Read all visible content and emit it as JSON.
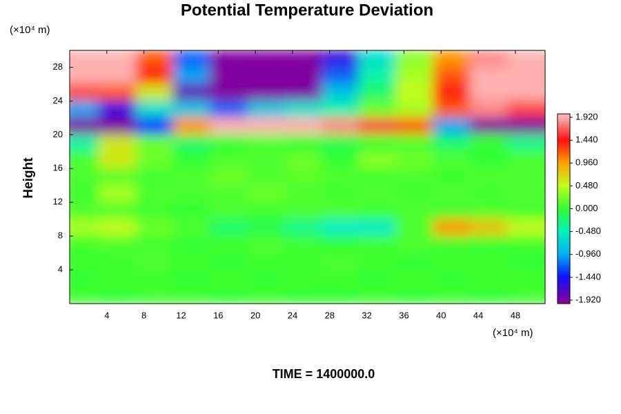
{
  "chart_data": {
    "type": "heatmap",
    "title": "Potential Temperature Deviation",
    "ylabel": "Height",
    "y_unit": "(×10⁴ m)",
    "x_unit": "(×10⁴ m)",
    "annotation": "TIME = 1400000.0",
    "x": [
      2,
      6,
      10,
      14,
      18,
      22,
      26,
      30,
      34,
      38,
      42,
      46,
      50
    ],
    "y": [
      29,
      27,
      25,
      23,
      21,
      19,
      17,
      15,
      13,
      11,
      9,
      7,
      5,
      3,
      1
    ],
    "z": [
      [
        1.92,
        1.92,
        1.2,
        -1.2,
        -1.92,
        -1.92,
        -1.92,
        -1.6,
        -0.6,
        0.3,
        1.0,
        1.8,
        1.92
      ],
      [
        1.92,
        1.92,
        1.4,
        -1.0,
        -1.92,
        -1.92,
        -1.92,
        -1.2,
        -0.4,
        0.4,
        1.2,
        1.92,
        1.92
      ],
      [
        1.6,
        1.2,
        0.6,
        -1.8,
        -1.92,
        -1.92,
        -1.9,
        -0.8,
        -0.2,
        0.5,
        1.4,
        1.92,
        1.92
      ],
      [
        -1.0,
        -1.6,
        -0.6,
        -0.8,
        -1.2,
        -0.8,
        -0.6,
        -0.4,
        0.2,
        0.4,
        1.2,
        1.8,
        1.6
      ],
      [
        -1.92,
        -1.92,
        -1.4,
        1.0,
        1.92,
        1.92,
        1.92,
        1.8,
        1.6,
        1.2,
        -1.0,
        -1.92,
        -1.92
      ],
      [
        -0.4,
        0.6,
        0.2,
        -0.2,
        0.0,
        0.1,
        0.0,
        -0.1,
        0.0,
        0.1,
        -0.2,
        0.0,
        -0.3
      ],
      [
        0.1,
        0.6,
        0.2,
        0.0,
        0.1,
        0.1,
        0.2,
        0.0,
        0.3,
        0.2,
        0.1,
        0.0,
        0.1
      ],
      [
        0.1,
        0.15,
        0.05,
        0.1,
        0.2,
        0.1,
        0.15,
        0.1,
        0.05,
        0.1,
        0.05,
        0.1,
        0.1
      ],
      [
        0.05,
        0.4,
        0.1,
        0.1,
        0.1,
        0.2,
        0.1,
        0.05,
        0.1,
        0.05,
        0.1,
        0.05,
        0.1
      ],
      [
        0.1,
        0.1,
        0.05,
        0.0,
        0.1,
        0.05,
        0.1,
        0.1,
        0.05,
        0.1,
        0.05,
        0.1,
        0.05
      ],
      [
        0.4,
        0.5,
        0.2,
        0.1,
        -0.2,
        -0.1,
        -0.3,
        -0.5,
        -0.5,
        0.1,
        1.0,
        0.8,
        0.5
      ],
      [
        0.05,
        0.1,
        0.05,
        0.0,
        0.05,
        0.1,
        0.05,
        0.0,
        0.05,
        0.1,
        0.05,
        0.0,
        0.05
      ],
      [
        0.05,
        0.05,
        0.1,
        0.05,
        0.0,
        0.05,
        0.05,
        0.1,
        0.05,
        0.0,
        0.05,
        0.05,
        0.0
      ],
      [
        0.0,
        0.05,
        0.05,
        0.0,
        0.05,
        0.0,
        0.05,
        0.05,
        0.0,
        0.05,
        0.0,
        0.05,
        0.05
      ],
      [
        0.05,
        0.0,
        0.05,
        0.05,
        0.0,
        0.05,
        0.0,
        0.0,
        0.05,
        0.0,
        0.05,
        0.0,
        0.05
      ]
    ],
    "xlim": [
      0,
      51.2
    ],
    "ylim": [
      0,
      30
    ],
    "xticks": [
      4,
      8,
      12,
      16,
      20,
      24,
      28,
      32,
      36,
      40,
      44,
      48
    ],
    "yticks": [
      4,
      8,
      12,
      16,
      20,
      24,
      28
    ],
    "clim": [
      -1.92,
      1.92
    ],
    "colors": [
      "#8000a0",
      "#1010ff",
      "#00b0f0",
      "#00f0c0",
      "#30ff30",
      "#c0ff20",
      "#ffa000",
      "#ff1010",
      "#ffb0b0"
    ],
    "cticks": [
      {
        "value": 1.92,
        "label": "1.920"
      },
      {
        "value": 1.44,
        "label": "1.440"
      },
      {
        "value": 0.96,
        "label": "0.960"
      },
      {
        "value": 0.48,
        "label": "0.480"
      },
      {
        "value": 0,
        "label": "0.000"
      },
      {
        "value": -0.48,
        "label": "-0.480"
      },
      {
        "value": -0.96,
        "label": "-0.960"
      },
      {
        "value": -1.44,
        "label": "-1.440"
      },
      {
        "value": -1.92,
        "label": "-1.920"
      }
    ]
  }
}
